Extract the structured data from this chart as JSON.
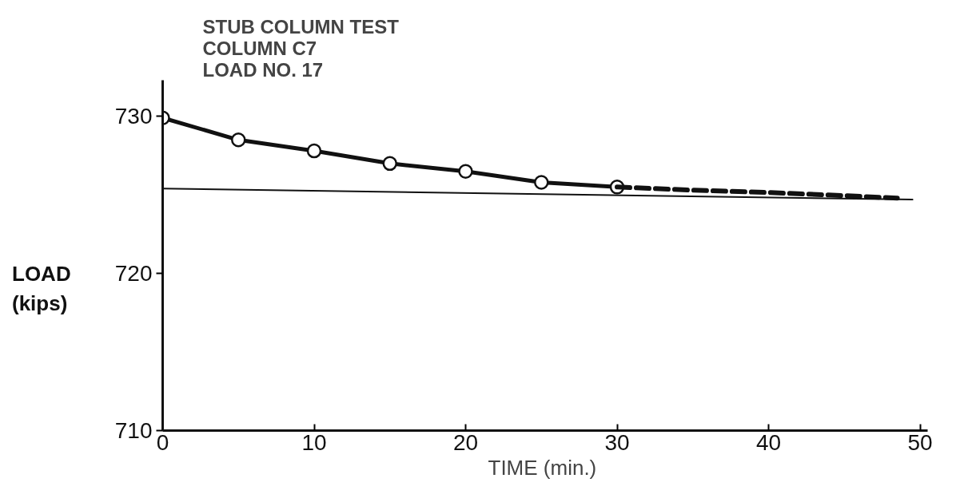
{
  "chart_data": {
    "type": "line",
    "title": "STUB COLUMN TEST\nCOLUMN C7\nLOAD NO. 17",
    "xlabel": "TIME  (min.)",
    "ylabel": "LOAD\n(kips)",
    "xlim": [
      0,
      50.5
    ],
    "ylim": [
      710,
      732.3
    ],
    "xticks": [
      0,
      10,
      20,
      30,
      40,
      50
    ],
    "yticks": [
      710,
      720,
      730
    ],
    "grid": false,
    "series": [
      {
        "color": "#111111",
        "marker": "circle",
        "line_style": "solid",
        "x": [
          0,
          5,
          10,
          15,
          20,
          25,
          30
        ],
        "values": [
          729.9,
          728.5,
          727.8,
          727.0,
          726.5,
          725.8,
          725.5
        ]
      },
      {
        "color": "#111111",
        "marker": "none",
        "line_style": "dashed",
        "x": [
          30,
          35,
          40,
          45,
          48.5
        ],
        "values": [
          725.5,
          725.3,
          725.15,
          724.95,
          724.8
        ]
      },
      {
        "color": "#111111",
        "marker": "none",
        "line_style": "solid",
        "x": [
          0,
          49.5
        ],
        "values": [
          725.4,
          724.7
        ]
      }
    ]
  }
}
